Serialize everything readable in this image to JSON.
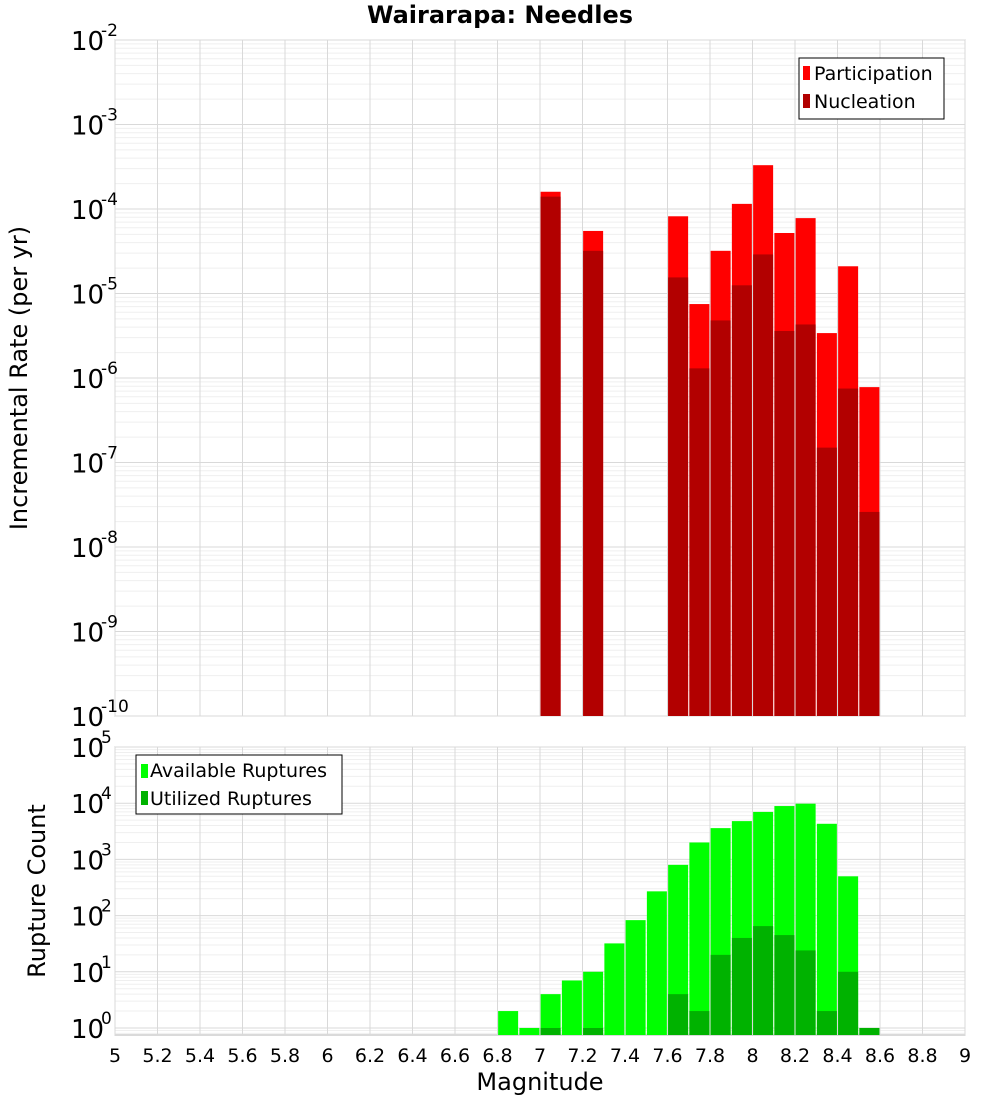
{
  "chart_data": [
    {
      "type": "bar",
      "title": "Wairarapa: Needles",
      "xlabel": "",
      "ylabel": "Incremental Rate (per yr)",
      "yscale": "log",
      "ylim": [
        1e-10,
        0.01
      ],
      "xlim": [
        5,
        9
      ],
      "grid": true,
      "legend_position": "top-right",
      "y_ticks": [
        {
          "base": "10",
          "exp": "-10",
          "value": 1e-10
        },
        {
          "base": "10",
          "exp": "-9",
          "value": 1e-09
        },
        {
          "base": "10",
          "exp": "-8",
          "value": 1e-08
        },
        {
          "base": "10",
          "exp": "-7",
          "value": 1e-07
        },
        {
          "base": "10",
          "exp": "-6",
          "value": 1e-06
        },
        {
          "base": "10",
          "exp": "-5",
          "value": 1e-05
        },
        {
          "base": "10",
          "exp": "-4",
          "value": 0.0001
        },
        {
          "base": "10",
          "exp": "-3",
          "value": 0.001
        },
        {
          "base": "10",
          "exp": "-2",
          "value": 0.01
        }
      ],
      "series": [
        {
          "name": "Participation",
          "color": "#ff0000",
          "points": [
            {
              "x": 7.05,
              "y": 0.00016
            },
            {
              "x": 7.25,
              "y": 5.5e-05
            },
            {
              "x": 7.65,
              "y": 8.2e-05
            },
            {
              "x": 7.75,
              "y": 7.5e-06
            },
            {
              "x": 7.85,
              "y": 3.2e-05
            },
            {
              "x": 7.95,
              "y": 0.000115
            },
            {
              "x": 8.05,
              "y": 0.00033
            },
            {
              "x": 8.15,
              "y": 5.2e-05
            },
            {
              "x": 8.25,
              "y": 7.8e-05
            },
            {
              "x": 8.35,
              "y": 3.4e-06
            },
            {
              "x": 8.45,
              "y": 2.1e-05
            },
            {
              "x": 8.55,
              "y": 7.8e-07
            }
          ]
        },
        {
          "name": "Nucleation",
          "color": "#b20000",
          "points": [
            {
              "x": 7.05,
              "y": 0.00014
            },
            {
              "x": 7.25,
              "y": 3.2e-05
            },
            {
              "x": 7.65,
              "y": 1.55e-05
            },
            {
              "x": 7.75,
              "y": 1.3e-06
            },
            {
              "x": 7.85,
              "y": 4.8e-06
            },
            {
              "x": 7.95,
              "y": 1.25e-05
            },
            {
              "x": 8.05,
              "y": 2.9e-05
            },
            {
              "x": 8.15,
              "y": 3.6e-06
            },
            {
              "x": 8.25,
              "y": 4.3e-06
            },
            {
              "x": 8.35,
              "y": 1.5e-07
            },
            {
              "x": 8.45,
              "y": 7.5e-07
            },
            {
              "x": 8.55,
              "y": 2.6e-08
            }
          ]
        }
      ]
    },
    {
      "type": "bar",
      "title": "",
      "xlabel": "Magnitude",
      "ylabel": "Rupture Count",
      "yscale": "log",
      "ylim": [
        0.75,
        100000.0
      ],
      "xlim": [
        5,
        9
      ],
      "grid": true,
      "legend_position": "top-left",
      "x_ticks": [
        "5",
        "5.2",
        "5.4",
        "5.6",
        "5.8",
        "6",
        "6.2",
        "6.4",
        "6.6",
        "6.8",
        "7",
        "7.2",
        "7.4",
        "7.6",
        "7.8",
        "8",
        "8.2",
        "8.4",
        "8.6",
        "8.8",
        "9"
      ],
      "y_ticks": [
        {
          "base": "10",
          "exp": "0",
          "value": 1
        },
        {
          "base": "10",
          "exp": "1",
          "value": 10
        },
        {
          "base": "10",
          "exp": "2",
          "value": 100
        },
        {
          "base": "10",
          "exp": "3",
          "value": 1000
        },
        {
          "base": "10",
          "exp": "4",
          "value": 10000
        },
        {
          "base": "10",
          "exp": "5",
          "value": 100000
        }
      ],
      "series": [
        {
          "name": "Available Ruptures",
          "color": "#00ff00",
          "points": [
            {
              "x": 6.85,
              "y": 2
            },
            {
              "x": 6.95,
              "y": 1
            },
            {
              "x": 7.05,
              "y": 4
            },
            {
              "x": 7.15,
              "y": 7
            },
            {
              "x": 7.25,
              "y": 10
            },
            {
              "x": 7.35,
              "y": 32
            },
            {
              "x": 7.45,
              "y": 83
            },
            {
              "x": 7.55,
              "y": 270
            },
            {
              "x": 7.65,
              "y": 800
            },
            {
              "x": 7.75,
              "y": 2000
            },
            {
              "x": 7.85,
              "y": 3600
            },
            {
              "x": 7.95,
              "y": 4800
            },
            {
              "x": 8.05,
              "y": 7000
            },
            {
              "x": 8.15,
              "y": 8900
            },
            {
              "x": 8.25,
              "y": 9800
            },
            {
              "x": 8.35,
              "y": 4300
            },
            {
              "x": 8.45,
              "y": 500
            },
            {
              "x": 8.55,
              "y": 1
            }
          ]
        },
        {
          "name": "Utilized Ruptures",
          "color": "#00b200",
          "points": [
            {
              "x": 7.05,
              "y": 1
            },
            {
              "x": 7.25,
              "y": 1
            },
            {
              "x": 7.65,
              "y": 4
            },
            {
              "x": 7.75,
              "y": 2
            },
            {
              "x": 7.85,
              "y": 20
            },
            {
              "x": 7.95,
              "y": 40
            },
            {
              "x": 8.05,
              "y": 65
            },
            {
              "x": 8.15,
              "y": 45
            },
            {
              "x": 8.25,
              "y": 24
            },
            {
              "x": 8.35,
              "y": 2
            },
            {
              "x": 8.45,
              "y": 10
            },
            {
              "x": 8.55,
              "y": 1
            }
          ]
        }
      ]
    }
  ]
}
